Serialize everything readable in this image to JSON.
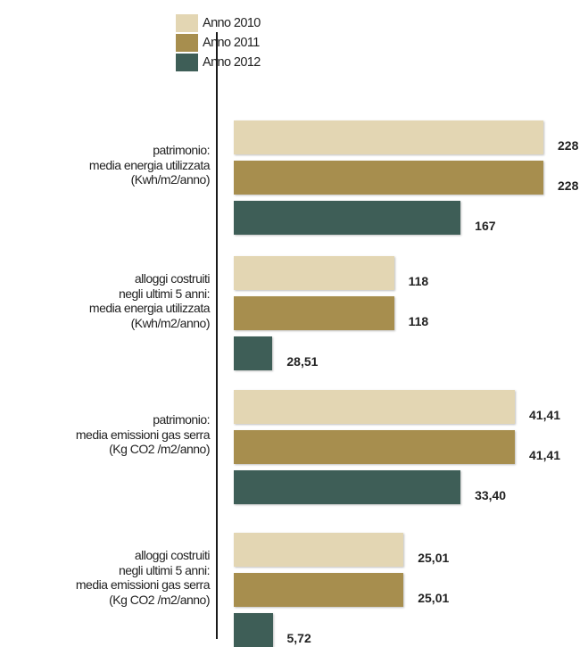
{
  "chart_data": {
    "type": "bar",
    "orientation": "horizontal",
    "title": "",
    "xlabel": "",
    "ylabel": "",
    "legend_position": "top-left",
    "grid": false,
    "categories": [
      [
        "patrimonio:",
        "media energia utilizzata",
        "(Kwh/m2/anno)"
      ],
      [
        "alloggi costruiti",
        "negli ultimi 5 anni:",
        "media energia utilizzata",
        "(Kwh/m2/anno)"
      ],
      [
        "patrimonio:",
        "media emissioni gas serra",
        "(Kg CO2 /m2/anno)"
      ],
      [
        "alloggi costruiti",
        "negli ultimi 5 anni:",
        "media emissioni gas serra",
        "(Kg CO2 /m2/anno)"
      ]
    ],
    "series": [
      {
        "name": "Anno 2010",
        "color": "#e3d6b3",
        "values": [
          228,
          118,
          41.41,
          25.01
        ],
        "labels": [
          "228",
          "118",
          "41,41",
          "25,01"
        ]
      },
      {
        "name": "Anno 2011",
        "color": "#a78e4e",
        "values": [
          228,
          118,
          41.41,
          25.01
        ],
        "labels": [
          "228",
          "118",
          "41,41",
          "25,01"
        ]
      },
      {
        "name": "Anno 2012",
        "color": "#3e5e57",
        "values": [
          167,
          28.51,
          33.4,
          5.72
        ],
        "labels": [
          "167",
          "28,51",
          "33,40",
          "5,72"
        ]
      }
    ]
  }
}
